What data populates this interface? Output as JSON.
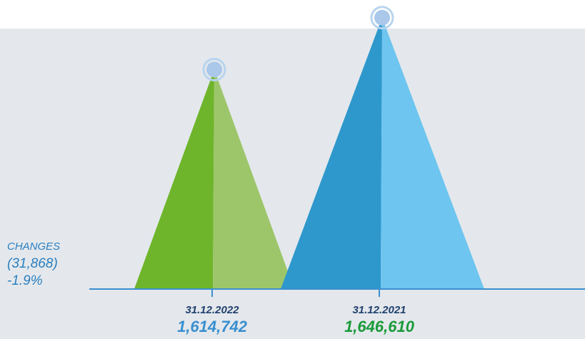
{
  "chart_data": {
    "type": "pyramid",
    "categories": [
      "31.12.2022",
      "31.12.2021"
    ],
    "values": [
      1614742,
      1646610
    ],
    "value_labels": [
      "1,614,742",
      "1,646,610"
    ],
    "series_colors": [
      [
        "#6fb52c",
        "#9dc66a"
      ],
      [
        "#2e98cc",
        "#6ec5ef"
      ]
    ],
    "label_colors": [
      "#3a8fd0",
      "#1a9a3a"
    ],
    "ylim": [
      1480000,
      1650000
    ],
    "annotations": [
      "CHANGES",
      "(31,868)",
      "-1.9%"
    ]
  }
}
